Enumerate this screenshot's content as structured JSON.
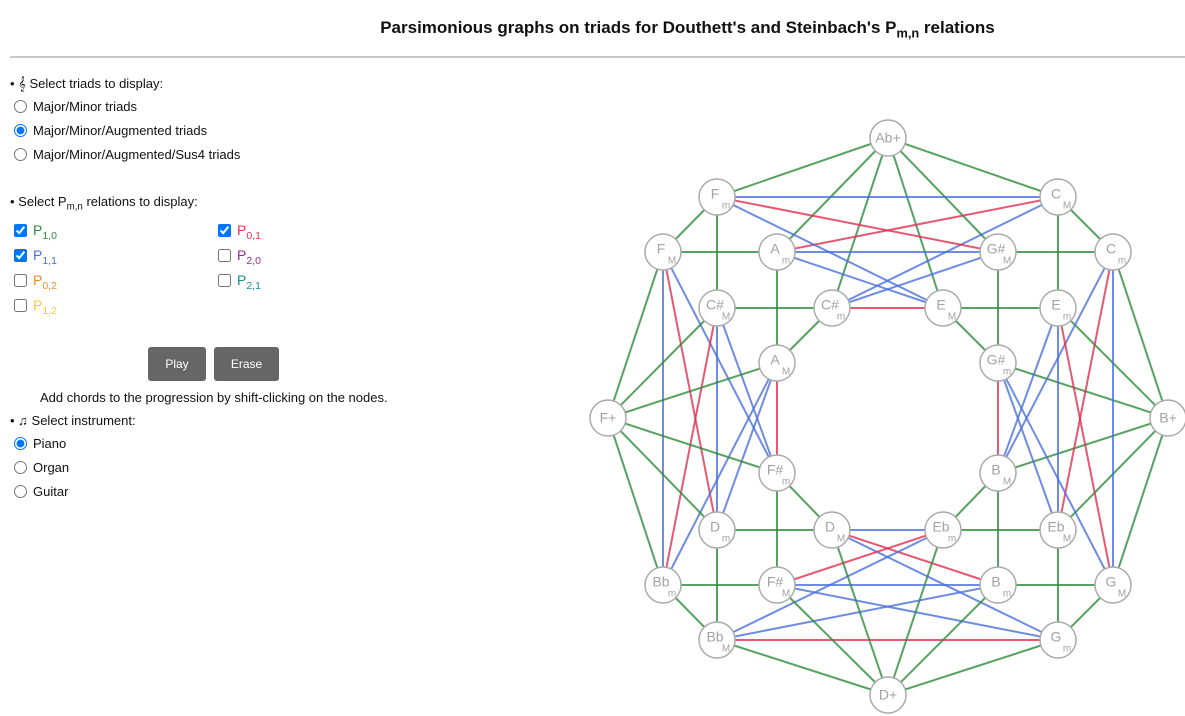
{
  "header": {
    "title": "Parsimonious graphs on triads for Douthett's and Steinbach's P",
    "title_sub": "m,n",
    "title_end": " relations"
  },
  "controls": {
    "triads": {
      "label": "Select triads to display:",
      "options": [
        "Major/Minor triads",
        "Major/Minor/Augmented triads",
        "Major/Minor/Augmented/Sus4 triads"
      ],
      "selected": 1
    },
    "relations": {
      "label_start": "Select P",
      "label_sub": "m,n",
      "label_end": " relations to display:",
      "options": [
        {
          "name": "P",
          "sub": "1,0",
          "color": "#2e8b3a",
          "checked": true
        },
        {
          "name": "P",
          "sub": "0,1",
          "color": "#e0304f",
          "checked": true
        },
        {
          "name": "P",
          "sub": "1,1",
          "color": "#4a6fdc",
          "checked": true
        },
        {
          "name": "P",
          "sub": "2,0",
          "color": "#9b2a9b",
          "checked": false
        },
        {
          "name": "P",
          "sub": "0,2",
          "color": "#f08a2a",
          "checked": false
        },
        {
          "name": "P",
          "sub": "2,1",
          "color": "#17918f",
          "checked": false
        },
        {
          "name": "P",
          "sub": "1,2",
          "color": "#f2cc3a",
          "checked": false
        }
      ]
    },
    "buttons": [
      "Play",
      "Erase"
    ],
    "hint": "Add chords to the progression by shift-clicking on the nodes.",
    "instrument": {
      "label": "Select instrument:",
      "options": [
        "Piano",
        "Organ",
        "Guitar"
      ],
      "selected": 0
    }
  },
  "graph": {
    "nodes": [
      {
        "label": "Ab+"
      },
      {
        "label": "F",
        "sub": "m"
      },
      {
        "label": "C",
        "sub": "M"
      },
      {
        "label": "F",
        "sub": "M"
      },
      {
        "label": "A",
        "sub": "m"
      },
      {
        "label": "G#",
        "sub": "M"
      },
      {
        "label": "C",
        "sub": "m"
      },
      {
        "label": "C#",
        "sub": "M"
      },
      {
        "label": "C#",
        "sub": "m"
      },
      {
        "label": "E",
        "sub": "M"
      },
      {
        "label": "E",
        "sub": "m"
      },
      {
        "label": "A",
        "sub": "M"
      },
      {
        "label": "G#",
        "sub": "m"
      },
      {
        "label": "F+"
      },
      {
        "label": "B+"
      },
      {
        "label": "F#",
        "sub": "m"
      },
      {
        "label": "B",
        "sub": "M"
      },
      {
        "label": "D",
        "sub": "m"
      },
      {
        "label": "D",
        "sub": "M"
      },
      {
        "label": "Eb",
        "sub": "m"
      },
      {
        "label": "Eb",
        "sub": "M"
      },
      {
        "label": "Bb",
        "sub": "m"
      },
      {
        "label": "F#",
        "sub": "M"
      },
      {
        "label": "B",
        "sub": "m"
      },
      {
        "label": "G",
        "sub": "M"
      },
      {
        "label": "Bb",
        "sub": "M"
      },
      {
        "label": "G",
        "sub": "m"
      },
      {
        "label": "D+"
      }
    ]
  }
}
